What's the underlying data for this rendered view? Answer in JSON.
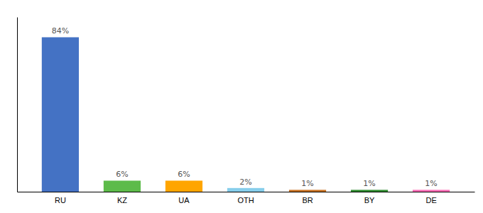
{
  "chart_data": {
    "type": "bar",
    "categories": [
      "RU",
      "KZ",
      "UA",
      "OTH",
      "BR",
      "BY",
      "DE"
    ],
    "values": [
      84,
      6,
      6,
      2,
      1,
      1,
      1
    ],
    "value_labels": [
      "84%",
      "6%",
      "6%",
      "2%",
      "1%",
      "1%",
      "1%"
    ],
    "colors": [
      "#4472C4",
      "#5DBB4A",
      "#FFA500",
      "#87CEEB",
      "#C87020",
      "#2E8B2E",
      "#FF69B4"
    ],
    "ylim": [
      0,
      95
    ],
    "data_labels": true,
    "tick_labels": "x",
    "grid": false
  }
}
